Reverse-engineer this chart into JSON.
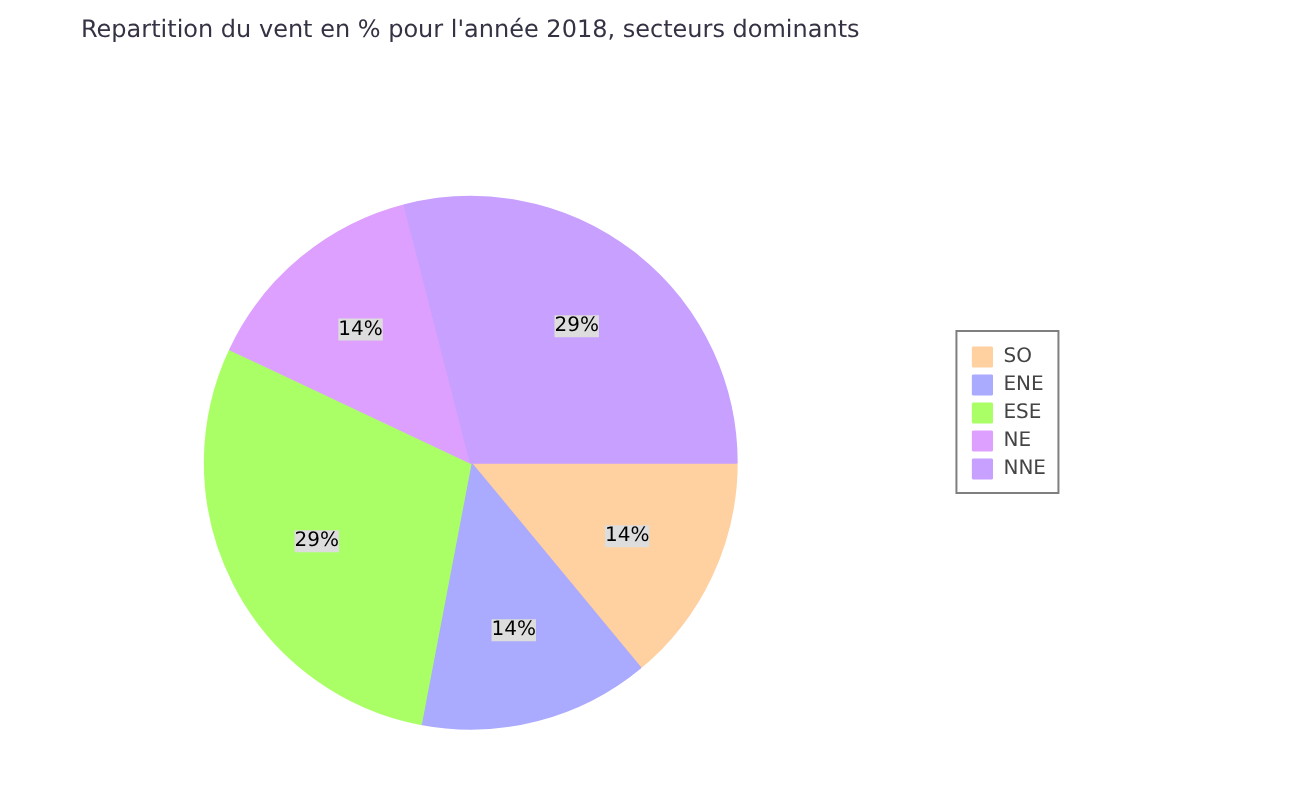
{
  "chart_data": {
    "type": "pie",
    "title": "Repartition du vent en % pour l'année 2018, secteurs dominants",
    "categories": [
      "SO",
      "ENE",
      "ESE",
      "NE",
      "NNE"
    ],
    "values": [
      14,
      14,
      29,
      14,
      29
    ],
    "value_labels": [
      "14%",
      "14%",
      "29%",
      "14%",
      "29%"
    ],
    "colors": [
      "#ffd0a0",
      "#aaaaff",
      "#aaff66",
      "#dda0ff",
      "#c8a0ff"
    ],
    "legend": "right"
  }
}
